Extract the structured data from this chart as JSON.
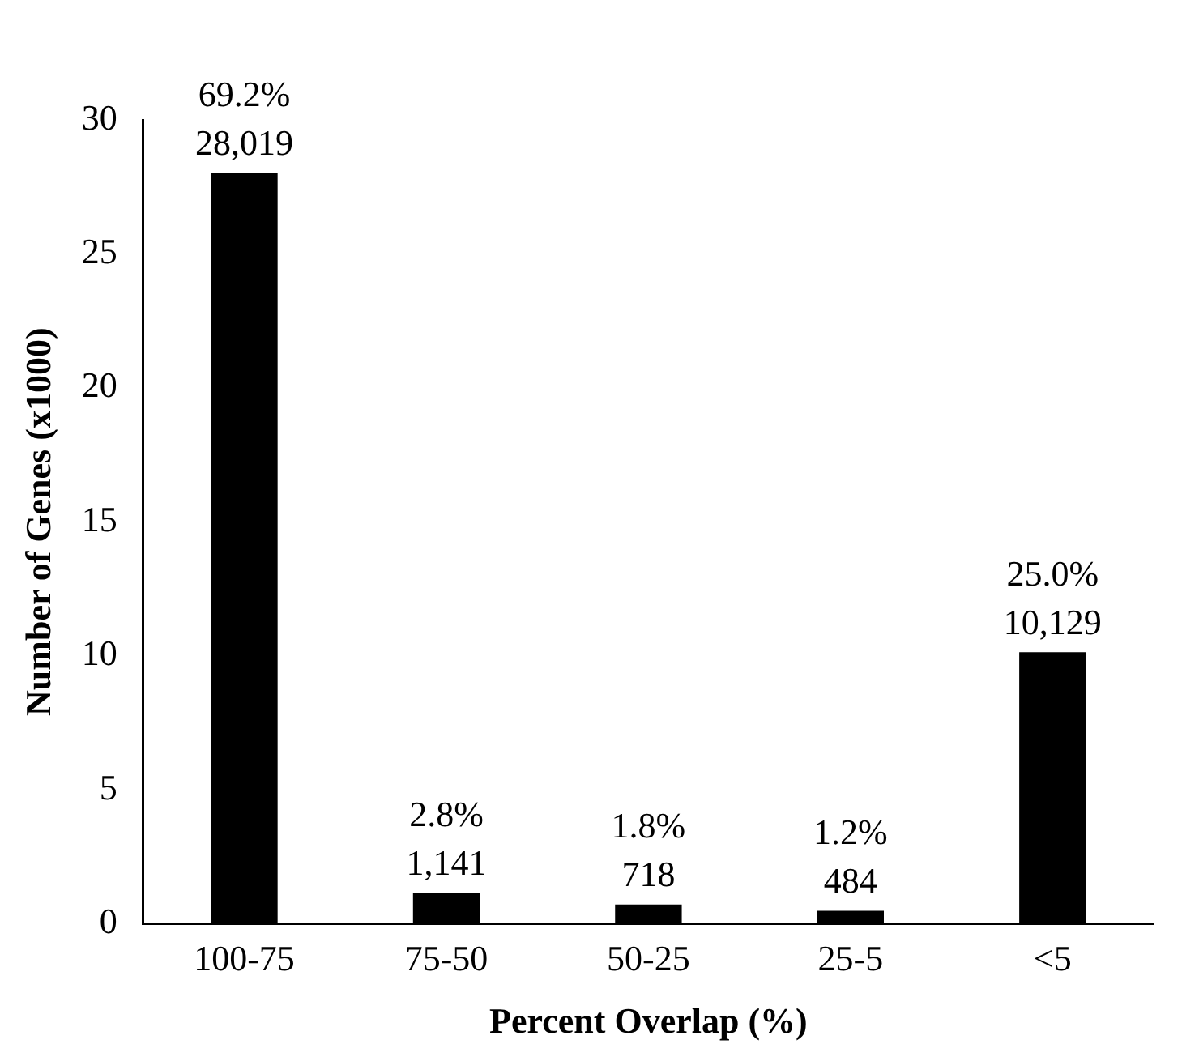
{
  "chart_data": {
    "type": "bar",
    "xlabel": "Percent Overlap (%)",
    "ylabel": "Number of Genes (x1000)",
    "categories": [
      "100-75",
      "75-50",
      "50-25",
      "25-5",
      "<5"
    ],
    "values": [
      28.019,
      1.141,
      0.718,
      0.484,
      10.129
    ],
    "annotations": [
      {
        "text": "69.2%\n28,019",
        "x": "100-75",
        "y": 28.019
      },
      {
        "text": "2.8%\n1,141",
        "x": "75-50",
        "y": 1.141
      },
      {
        "text": "1.8%\n718",
        "x": "50-25",
        "y": 0.718
      },
      {
        "text": "1.2%\n484",
        "x": "25-5",
        "y": 0.484
      },
      {
        "text": "25.0%\n10,129",
        "x": "<5",
        "y": 10.129
      }
    ],
    "color": "#000000",
    "ylim": [
      0,
      30
    ],
    "yticks": [
      0,
      5,
      10,
      15,
      20,
      25,
      30
    ],
    "grid": false,
    "legend": false
  }
}
